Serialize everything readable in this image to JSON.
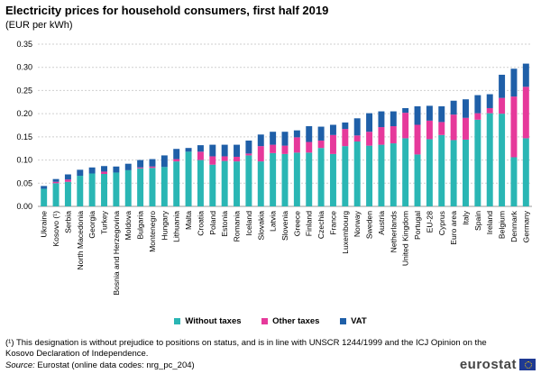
{
  "header": {
    "title": "Electricity prices for household consumers, first half 2019",
    "subtitle": "(EUR per kWh)"
  },
  "chart_data": {
    "type": "bar",
    "stacked": true,
    "ylim": [
      0,
      0.35
    ],
    "yticks": [
      "0.00",
      "0.05",
      "0.10",
      "0.15",
      "0.20",
      "0.25",
      "0.30",
      "0.35"
    ],
    "grid": true,
    "legend_position": "bottom",
    "categories": [
      "Ukraine",
      "Kosovo (¹)",
      "Serbia",
      "North Macedonia",
      "Georgia",
      "Turkey",
      "Bosnia and Herzegovina",
      "Moldova",
      "Bulgaria",
      "Montenegro",
      "Hungary",
      "Lithuania",
      "Malta",
      "Croatia",
      "Poland",
      "Estonia",
      "Romania",
      "Iceland",
      "Slovakia",
      "Latvia",
      "Slovenia",
      "Greece",
      "Finland",
      "Czechia",
      "France",
      "Luxembourg",
      "Norway",
      "Sweden",
      "Austria",
      "Netherlands",
      "United Kingdom",
      "Portugal",
      "EU-28",
      "Cyprus",
      "Euro area",
      "Italy",
      "Spain",
      "Ireland",
      "Belgium",
      "Denmark",
      "Germany"
    ],
    "series": [
      {
        "name": "Without taxes",
        "color": "#2ab6b4",
        "values": [
          0.038,
          0.05,
          0.053,
          0.066,
          0.071,
          0.07,
          0.073,
          0.078,
          0.082,
          0.083,
          0.085,
          0.097,
          0.118,
          0.1,
          0.09,
          0.098,
          0.097,
          0.11,
          0.097,
          0.115,
          0.113,
          0.116,
          0.116,
          0.126,
          0.113,
          0.13,
          0.14,
          0.131,
          0.133,
          0.136,
          0.147,
          0.112,
          0.145,
          0.154,
          0.143,
          0.144,
          0.187,
          0.201,
          0.2,
          0.106,
          0.147
        ]
      },
      {
        "name": "Other taxes",
        "color": "#e6399b",
        "values": [
          0.0,
          0.003,
          0.005,
          0.0,
          0.0,
          0.005,
          0.0,
          0.0,
          0.002,
          0.003,
          0.0,
          0.005,
          0.0,
          0.018,
          0.018,
          0.01,
          0.01,
          0.004,
          0.033,
          0.018,
          0.018,
          0.033,
          0.023,
          0.016,
          0.041,
          0.037,
          0.013,
          0.03,
          0.038,
          0.037,
          0.055,
          0.064,
          0.04,
          0.028,
          0.055,
          0.047,
          0.014,
          0.011,
          0.034,
          0.131,
          0.111
        ]
      },
      {
        "name": "VAT",
        "color": "#1f5fa8",
        "values": [
          0.006,
          0.006,
          0.011,
          0.013,
          0.013,
          0.012,
          0.013,
          0.014,
          0.016,
          0.016,
          0.025,
          0.022,
          0.008,
          0.014,
          0.025,
          0.025,
          0.026,
          0.028,
          0.025,
          0.028,
          0.03,
          0.015,
          0.034,
          0.03,
          0.022,
          0.014,
          0.037,
          0.04,
          0.034,
          0.032,
          0.01,
          0.04,
          0.032,
          0.034,
          0.03,
          0.04,
          0.039,
          0.03,
          0.05,
          0.06,
          0.05
        ]
      }
    ]
  },
  "footnote": "(¹) This designation is without prejudice to positions on status, and is in line with UNSCR 1244/1999 and the ICJ Opinion on the Kosovo Declaration of Independence.",
  "source": {
    "label": "Source:",
    "text": "Eurostat (online data codes: nrg_pc_204)"
  },
  "logo": {
    "text": "eurostat"
  }
}
